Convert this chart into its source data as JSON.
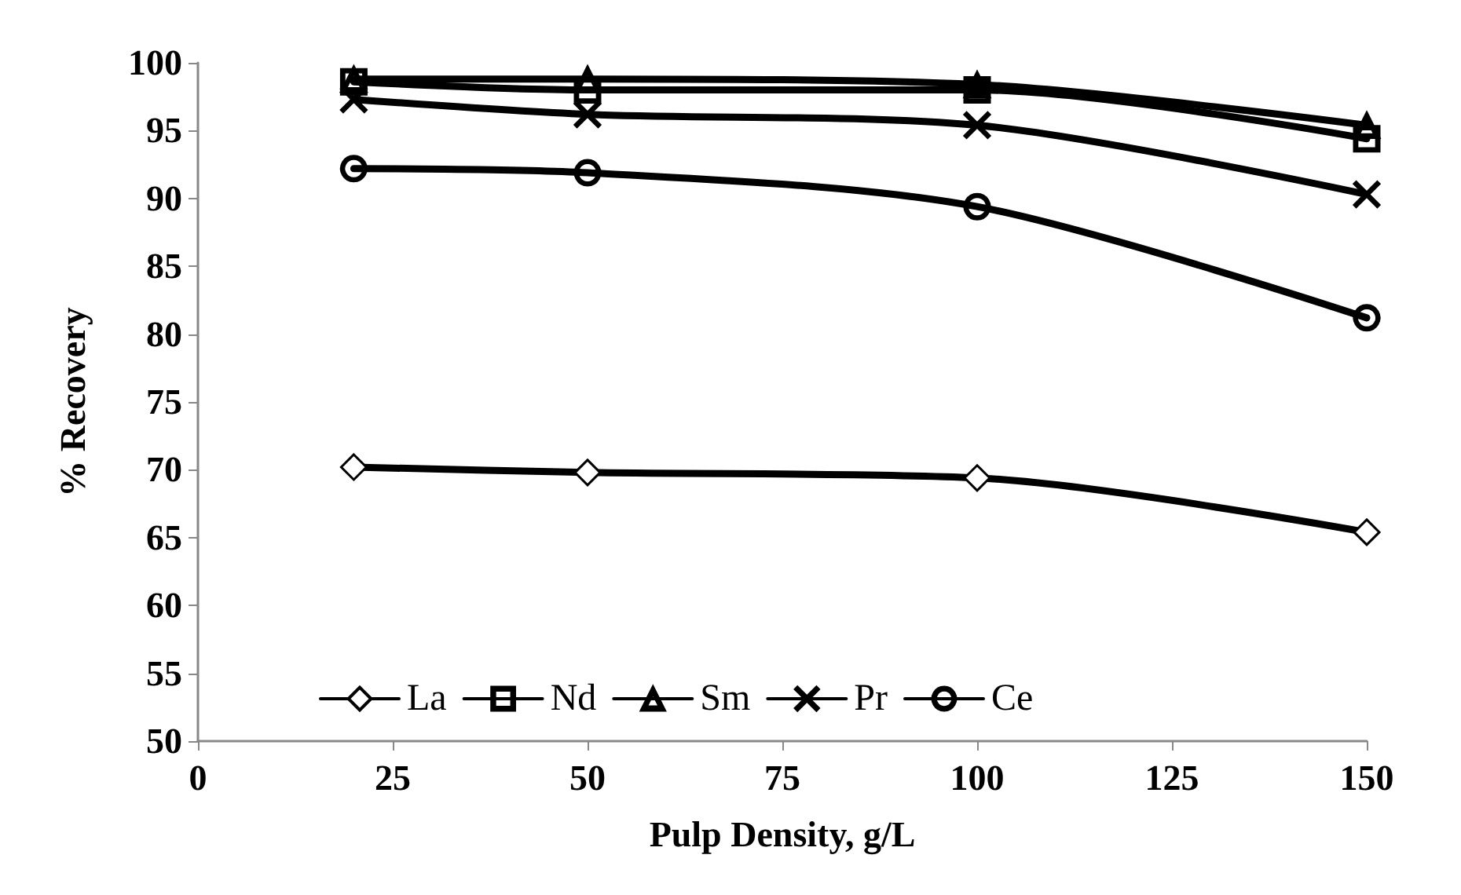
{
  "chart_data": {
    "type": "line",
    "xlabel": "Pulp Density, g/L",
    "ylabel": "% Recovery",
    "x": [
      20,
      50,
      100,
      150
    ],
    "series": [
      {
        "name": "La",
        "color": "#000000",
        "marker": "diamond",
        "values": [
          70.2,
          69.8,
          69.4,
          65.4
        ]
      },
      {
        "name": "Nd",
        "color": "#000000",
        "marker": "square",
        "values": [
          98.6,
          98.0,
          98.0,
          94.4
        ]
      },
      {
        "name": "Sm",
        "color": "#000000",
        "marker": "triangle",
        "values": [
          98.8,
          98.8,
          98.4,
          95.4
        ]
      },
      {
        "name": "Pr",
        "color": "#000000",
        "marker": "cross",
        "values": [
          97.3,
          96.2,
          95.4,
          90.3
        ]
      },
      {
        "name": "Ce",
        "color": "#000000",
        "marker": "circle",
        "values": [
          92.2,
          91.9,
          89.4,
          81.2
        ]
      }
    ],
    "xlim": [
      0,
      150
    ],
    "xticks": [
      0,
      25,
      50,
      75,
      100,
      125,
      150
    ],
    "ylim": [
      50,
      100
    ],
    "yticks": [
      50,
      55,
      60,
      65,
      70,
      75,
      80,
      85,
      90,
      95,
      100
    ],
    "grid": false,
    "legend": "bottom",
    "line_style": "solid"
  }
}
